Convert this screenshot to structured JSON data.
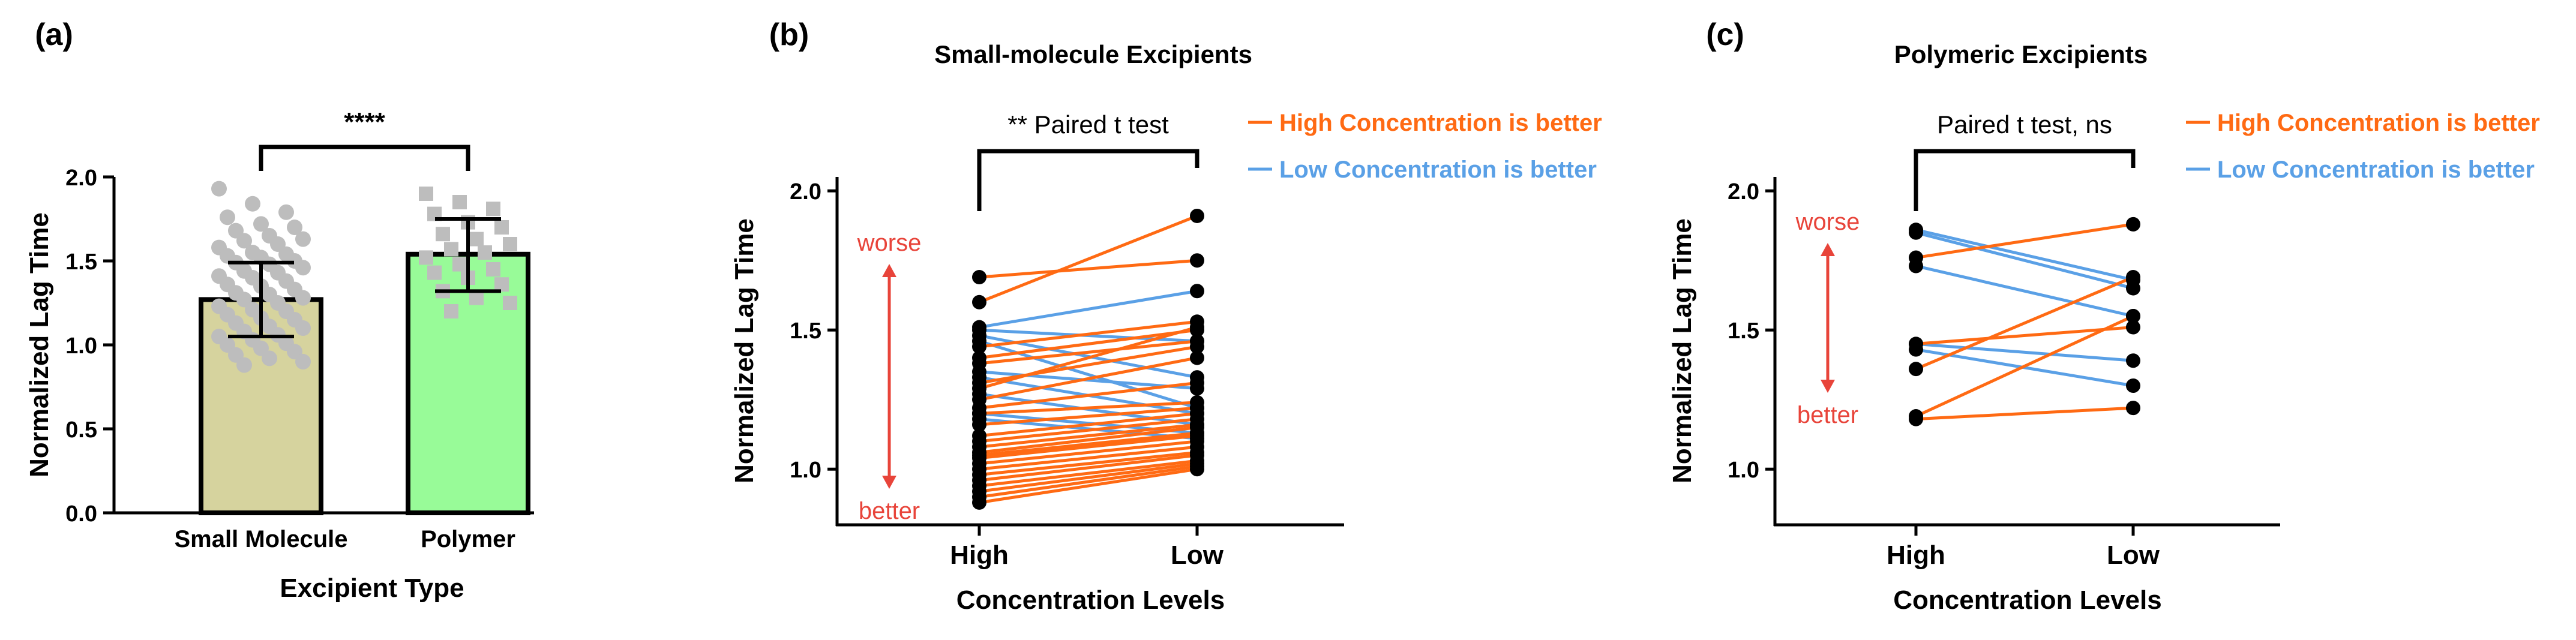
{
  "colors": {
    "high_is_better": "#ff6a13",
    "low_is_better": "#5aa0e6",
    "annotation_red": "#e8443a",
    "small_molecule_bar": "#d6d39e",
    "polymer_bar": "#98fb98",
    "small_molecule_points": "#bdbdbd",
    "polymer_points": "#bdbdbd",
    "axis": "#000000"
  },
  "chart_data": [
    {
      "panel": "(a)",
      "type": "bar",
      "title": "",
      "xlabel": "Excipient Type",
      "ylabel": "Normalized Lag Time",
      "ylim": [
        0,
        2.0
      ],
      "yticks": [
        "0.0",
        "0.5",
        "1.0",
        "1.5",
        "2.0"
      ],
      "categories": [
        "Small Molecule",
        "Polymer"
      ],
      "values": [
        1.27,
        1.54
      ],
      "error_lower": [
        1.05,
        1.32
      ],
      "error_upper": [
        1.49,
        1.75
      ],
      "significance": "****",
      "point_markers": [
        "circle",
        "square"
      ],
      "points": [
        [
          1.93,
          1.84,
          1.79,
          1.76,
          1.72,
          1.7,
          1.68,
          1.65,
          1.63,
          1.62,
          1.6,
          1.58,
          1.55,
          1.54,
          1.53,
          1.52,
          1.5,
          1.49,
          1.48,
          1.46,
          1.44,
          1.43,
          1.41,
          1.4,
          1.38,
          1.36,
          1.35,
          1.33,
          1.31,
          1.3,
          1.28,
          1.27,
          1.25,
          1.23,
          1.21,
          1.2,
          1.18,
          1.16,
          1.15,
          1.13,
          1.11,
          1.1,
          1.08,
          1.06,
          1.05,
          1.03,
          1.01,
          1.0,
          0.98,
          0.96,
          0.94,
          0.92,
          0.9,
          0.88
        ],
        [
          1.9,
          1.85,
          1.81,
          1.78,
          1.73,
          1.7,
          1.66,
          1.63,
          1.6,
          1.57,
          1.55,
          1.52,
          1.48,
          1.45,
          1.43,
          1.4,
          1.36,
          1.32,
          1.28,
          1.25,
          1.2
        ]
      ]
    },
    {
      "panel": "(b)",
      "type": "line",
      "title": "Small-molecule  Excipients",
      "xlabel": "Concentration Levels",
      "ylabel": "Normalized Lag Time",
      "x": [
        "High",
        "Low"
      ],
      "ylim": [
        0.8,
        2.05
      ],
      "yticks": [
        "1.0",
        "1.5",
        "2.0"
      ],
      "test_label": "** Paired t test",
      "legend": [
        "High Concentration is better",
        "Low Concentration is better"
      ],
      "arrow_labels": {
        "top": "worse",
        "bottom": "better"
      },
      "series": [
        {
          "group": "low",
          "values": [
            1.51,
            1.64
          ]
        },
        {
          "group": "low",
          "values": [
            1.5,
            1.46
          ]
        },
        {
          "group": "low",
          "values": [
            1.48,
            1.33
          ]
        },
        {
          "group": "low",
          "values": [
            1.46,
            1.22
          ]
        },
        {
          "group": "low",
          "values": [
            1.35,
            1.29
          ]
        },
        {
          "group": "low",
          "values": [
            1.33,
            1.2
          ]
        },
        {
          "group": "low",
          "values": [
            1.27,
            1.16
          ]
        },
        {
          "group": "low",
          "values": [
            1.2,
            1.13
          ]
        },
        {
          "group": "low",
          "values": [
            1.18,
            1.11
          ]
        },
        {
          "group": "high",
          "values": [
            1.69,
            1.75
          ]
        },
        {
          "group": "high",
          "values": [
            1.6,
            1.91
          ]
        },
        {
          "group": "high",
          "values": [
            1.44,
            1.53
          ]
        },
        {
          "group": "high",
          "values": [
            1.4,
            1.5
          ]
        },
        {
          "group": "high",
          "values": [
            1.38,
            1.46
          ]
        },
        {
          "group": "high",
          "values": [
            1.31,
            1.44
          ]
        },
        {
          "group": "high",
          "values": [
            1.29,
            1.51
          ]
        },
        {
          "group": "high",
          "values": [
            1.25,
            1.4
          ]
        },
        {
          "group": "high",
          "values": [
            1.22,
            1.31
          ]
        },
        {
          "group": "high",
          "values": [
            1.2,
            1.24
          ]
        },
        {
          "group": "high",
          "values": [
            1.16,
            1.22
          ]
        },
        {
          "group": "high",
          "values": [
            1.12,
            1.2
          ]
        },
        {
          "group": "high",
          "values": [
            1.1,
            1.18
          ]
        },
        {
          "group": "high",
          "values": [
            1.08,
            1.16
          ]
        },
        {
          "group": "high",
          "values": [
            1.06,
            1.15
          ]
        },
        {
          "group": "high",
          "values": [
            1.05,
            1.13
          ]
        },
        {
          "group": "high",
          "values": [
            1.04,
            1.12
          ]
        },
        {
          "group": "high",
          "values": [
            1.02,
            1.1
          ]
        },
        {
          "group": "high",
          "values": [
            1.0,
            1.08
          ]
        },
        {
          "group": "high",
          "values": [
            0.98,
            1.06
          ]
        },
        {
          "group": "high",
          "values": [
            0.96,
            1.05
          ]
        },
        {
          "group": "high",
          "values": [
            0.94,
            1.03
          ]
        },
        {
          "group": "high",
          "values": [
            0.92,
            1.02
          ]
        },
        {
          "group": "high",
          "values": [
            0.9,
            1.01
          ]
        },
        {
          "group": "high",
          "values": [
            0.88,
            1.0
          ]
        }
      ]
    },
    {
      "panel": "(c)",
      "type": "line",
      "title": "Polymeric Excipients",
      "xlabel": "Concentration Levels",
      "ylabel": "Normalized Lag Time",
      "x": [
        "High",
        "Low"
      ],
      "ylim": [
        0.8,
        2.05
      ],
      "yticks": [
        "1.0",
        "1.5",
        "2.0"
      ],
      "test_label": "Paired t test, ns",
      "legend": [
        "High Concentration is better",
        "Low Concentration is better"
      ],
      "arrow_labels": {
        "top": "worse",
        "bottom": "better"
      },
      "series": [
        {
          "group": "low",
          "values": [
            1.86,
            1.68
          ]
        },
        {
          "group": "low",
          "values": [
            1.85,
            1.65
          ]
        },
        {
          "group": "low",
          "values": [
            1.73,
            1.55
          ]
        },
        {
          "group": "low",
          "values": [
            1.45,
            1.39
          ]
        },
        {
          "group": "low",
          "values": [
            1.43,
            1.3
          ]
        },
        {
          "group": "high",
          "values": [
            1.76,
            1.88
          ]
        },
        {
          "group": "high",
          "values": [
            1.45,
            1.51
          ]
        },
        {
          "group": "high",
          "values": [
            1.36,
            1.69
          ]
        },
        {
          "group": "high",
          "values": [
            1.19,
            1.55
          ]
        },
        {
          "group": "high",
          "values": [
            1.18,
            1.22
          ]
        }
      ]
    }
  ]
}
